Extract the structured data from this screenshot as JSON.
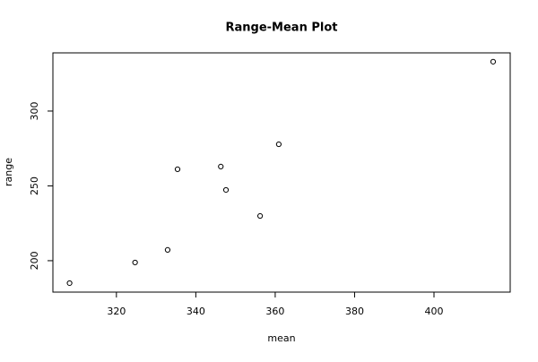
{
  "chart_data": {
    "type": "scatter",
    "title": "Range-Mean Plot",
    "x_label": "mean",
    "y_label": "range",
    "x": [
      308.2,
      324.7,
      332.9,
      335.4,
      346.3,
      347.6,
      356.2,
      360.9,
      414.9
    ],
    "values": [
      185,
      198.8,
      207.2,
      261.1,
      262.9,
      247.3,
      229.9,
      277.8,
      333
    ],
    "color": "#000000",
    "xlim": [
      304,
      419.2
    ],
    "xticks": [
      320,
      340,
      360,
      380,
      400
    ],
    "ylim": [
      179,
      338.9
    ],
    "yticks": [
      200,
      250,
      300
    ]
  }
}
